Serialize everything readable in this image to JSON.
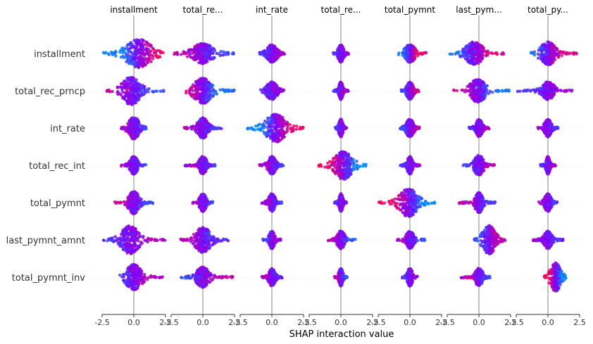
{
  "chart_data": {
    "type": "scatter",
    "subtype": "shap_interaction_beeswarm_matrix",
    "xlabel": "SHAP interaction value",
    "xlim": [
      -2.5,
      2.5
    ],
    "xticks": [
      -2.5,
      0.0,
      2.5
    ],
    "xtick_labels": [
      "-2.5",
      "0.0",
      "2.5"
    ],
    "column_titles": [
      "installment",
      "total_re...",
      "int_rate",
      "total_re...",
      "total_pymnt",
      "last_pym...",
      "total_py..."
    ],
    "features": [
      "installment",
      "total_rec_prncp",
      "int_rate",
      "total_rec_int",
      "total_pymnt",
      "last_pymnt_amnt",
      "total_pymnt_inv"
    ],
    "color_low": "#008bfb",
    "color_high": "#ff0052",
    "zero_line_color": "#999999",
    "grid_color": "#e8e8e8",
    "cells": [
      [
        {
          "min": -2.5,
          "max": 2.5,
          "center": 0.4,
          "spread": 1.0,
          "width": 1.0,
          "hueTrend": 1
        },
        {
          "min": -2.3,
          "max": 2.5,
          "center": 0.0,
          "spread": 0.8,
          "width": 0.7,
          "hueTrend": -0.5
        },
        {
          "min": -1.0,
          "max": 1.0,
          "center": 0.0,
          "spread": 0.4,
          "width": 0.6,
          "hueTrend": 0.3
        },
        {
          "min": -0.6,
          "max": 0.6,
          "center": 0.0,
          "spread": 0.2,
          "width": 0.6,
          "hueTrend": 0.2
        },
        {
          "min": -0.9,
          "max": 1.3,
          "center": 0.0,
          "spread": 0.4,
          "width": 0.6,
          "hueTrend": 1
        },
        {
          "min": -2.3,
          "max": 2.0,
          "center": -0.4,
          "spread": 0.7,
          "width": 0.8,
          "hueTrend": 0.8
        },
        {
          "min": -1.4,
          "max": 2.5,
          "center": 0.0,
          "spread": 0.6,
          "width": 0.8,
          "hueTrend": 0.8
        }
      ],
      [
        {
          "min": -2.2,
          "max": 2.4,
          "center": -0.2,
          "spread": 0.7,
          "width": 1.0,
          "hueTrend": -0.4
        },
        {
          "min": -1.4,
          "max": 2.5,
          "center": 0.0,
          "spread": 0.7,
          "width": 0.9,
          "hueTrend": -0.8
        },
        {
          "min": -1.0,
          "max": 1.0,
          "center": 0.0,
          "spread": 0.4,
          "width": 0.6,
          "hueTrend": 0.2
        },
        {
          "min": -0.6,
          "max": 0.6,
          "center": 0.0,
          "spread": 0.15,
          "width": 0.6,
          "hueTrend": 0.2
        },
        {
          "min": -0.7,
          "max": 0.7,
          "center": 0.0,
          "spread": 0.25,
          "width": 0.6,
          "hueTrend": 0.5
        },
        {
          "min": -2.0,
          "max": 2.4,
          "center": -0.1,
          "spread": 0.6,
          "width": 0.8,
          "hueTrend": -0.8
        },
        {
          "min": -2.4,
          "max": 2.0,
          "center": 0.0,
          "spread": 0.5,
          "width": 0.6,
          "hueTrend": 0.3
        }
      ],
      [
        {
          "min": -1.0,
          "max": 1.0,
          "center": 0.0,
          "spread": 0.4,
          "width": 0.8,
          "hueTrend": -0.3
        },
        {
          "min": -1.5,
          "max": 1.5,
          "center": 0.0,
          "spread": 0.4,
          "width": 0.7,
          "hueTrend": -0.3
        },
        {
          "min": -2.0,
          "max": 2.5,
          "center": 0.3,
          "spread": 0.8,
          "width": 1.0,
          "hueTrend": 1
        },
        {
          "min": -0.5,
          "max": 0.5,
          "center": 0.0,
          "spread": 0.15,
          "width": 0.6,
          "hueTrend": 0.3
        },
        {
          "min": -0.8,
          "max": 0.8,
          "center": 0.0,
          "spread": 0.3,
          "width": 0.6,
          "hueTrend": 0.5
        },
        {
          "min": -0.8,
          "max": 0.8,
          "center": 0.0,
          "spread": 0.25,
          "width": 0.6,
          "hueTrend": 0.3
        },
        {
          "min": -0.8,
          "max": 0.8,
          "center": 0.0,
          "spread": 0.25,
          "width": 0.6,
          "hueTrend": -0.3
        }
      ],
      [
        {
          "min": -1.0,
          "max": 1.0,
          "center": 0.0,
          "spread": 0.3,
          "width": 0.6,
          "hueTrend": -0.3
        },
        {
          "min": -1.4,
          "max": 1.0,
          "center": 0.0,
          "spread": 0.3,
          "width": 0.6,
          "hueTrend": -0.3
        },
        {
          "min": -1.0,
          "max": 1.0,
          "center": 0.0,
          "spread": 0.3,
          "width": 0.6,
          "hueTrend": -0.3
        },
        {
          "min": -1.8,
          "max": 2.0,
          "center": 0.2,
          "spread": 0.7,
          "width": 1.0,
          "hueTrend": -1
        },
        {
          "min": -0.8,
          "max": 0.8,
          "center": 0.0,
          "spread": 0.2,
          "width": 0.6,
          "hueTrend": 0.3
        },
        {
          "min": -1.3,
          "max": 1.3,
          "center": 0.0,
          "spread": 0.35,
          "width": 0.7,
          "hueTrend": 0.4
        },
        {
          "min": -0.6,
          "max": 0.6,
          "center": 0.0,
          "spread": 0.15,
          "width": 0.6,
          "hueTrend": 0.3
        }
      ],
      [
        {
          "min": -1.5,
          "max": 1.5,
          "center": 0.0,
          "spread": 0.4,
          "width": 0.8,
          "hueTrend": -0.5
        },
        {
          "min": -0.8,
          "max": 0.8,
          "center": 0.0,
          "spread": 0.25,
          "width": 0.6,
          "hueTrend": -0.3
        },
        {
          "min": -0.8,
          "max": 0.8,
          "center": 0.0,
          "spread": 0.25,
          "width": 0.6,
          "hueTrend": -0.3
        },
        {
          "min": -0.5,
          "max": 0.5,
          "center": 0.0,
          "spread": 0.15,
          "width": 0.6,
          "hueTrend": 0.2
        },
        {
          "min": -2.5,
          "max": 2.0,
          "center": -0.1,
          "spread": 0.7,
          "width": 1.0,
          "hueTrend": -1
        },
        {
          "min": -1.6,
          "max": 1.3,
          "center": 0.0,
          "spread": 0.3,
          "width": 0.7,
          "hueTrend": -0.5
        },
        {
          "min": -0.8,
          "max": 0.8,
          "center": 0.0,
          "spread": 0.25,
          "width": 0.6,
          "hueTrend": -0.3
        }
      ],
      [
        {
          "min": -2.5,
          "max": 2.5,
          "center": -0.3,
          "spread": 0.7,
          "width": 1.0,
          "hueTrend": 0.3
        },
        {
          "min": -1.8,
          "max": 2.0,
          "center": 0.0,
          "spread": 0.6,
          "width": 0.9,
          "hueTrend": -0.4
        },
        {
          "min": -0.7,
          "max": 0.7,
          "center": 0.0,
          "spread": 0.2,
          "width": 0.6,
          "hueTrend": 0.3
        },
        {
          "min": -1.0,
          "max": 1.2,
          "center": 0.0,
          "spread": 0.3,
          "width": 0.6,
          "hueTrend": -0.6
        },
        {
          "min": -1.0,
          "max": 1.2,
          "center": 0.0,
          "spread": 0.3,
          "width": 0.6,
          "hueTrend": -0.4
        },
        {
          "min": -0.4,
          "max": 2.2,
          "center": 0.8,
          "spread": 0.5,
          "width": 1.0,
          "hueTrend": 0.6
        },
        {
          "min": -1.2,
          "max": 1.2,
          "center": 0.0,
          "spread": 0.3,
          "width": 0.6,
          "hueTrend": -0.3
        }
      ],
      [
        {
          "min": -1.3,
          "max": 2.5,
          "center": 0.0,
          "spread": 0.6,
          "width": 0.9,
          "hueTrend": 0.4
        },
        {
          "min": -1.8,
          "max": 2.5,
          "center": 0.0,
          "spread": 0.5,
          "width": 0.7,
          "hueTrend": 0.5
        },
        {
          "min": -0.8,
          "max": 0.8,
          "center": 0.0,
          "spread": 0.25,
          "width": 0.6,
          "hueTrend": -0.3
        },
        {
          "min": -0.5,
          "max": 0.5,
          "center": 0.0,
          "spread": 0.15,
          "width": 0.6,
          "hueTrend": -0.6
        },
        {
          "min": -0.6,
          "max": 0.6,
          "center": 0.0,
          "spread": 0.2,
          "width": 0.6,
          "hueTrend": 0.3
        },
        {
          "min": -1.4,
          "max": 0.9,
          "center": 0.0,
          "spread": 0.3,
          "width": 0.6,
          "hueTrend": -0.5
        },
        {
          "min": -0.3,
          "max": 1.5,
          "center": 0.6,
          "spread": 0.4,
          "width": 1.0,
          "hueTrend": -1
        }
      ]
    ]
  }
}
